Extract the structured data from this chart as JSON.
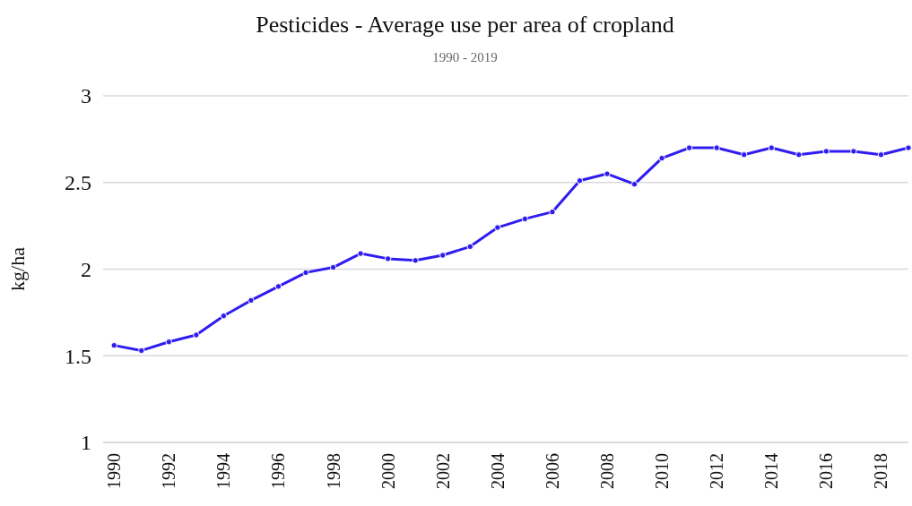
{
  "chart_data": {
    "type": "line",
    "title": "Pesticides - Average use per area of cropland",
    "subtitle": "1990 - 2019",
    "ylabel": "kg/ha",
    "x": [
      1990,
      1991,
      1992,
      1993,
      1994,
      1995,
      1996,
      1997,
      1998,
      1999,
      2000,
      2001,
      2002,
      2003,
      2004,
      2005,
      2006,
      2007,
      2008,
      2009,
      2010,
      2011,
      2012,
      2013,
      2014,
      2015,
      2016,
      2017,
      2018,
      2019
    ],
    "series": [
      {
        "color": "#2f1cf0",
        "values": [
          1.56,
          1.53,
          1.58,
          1.62,
          1.73,
          1.82,
          1.9,
          1.98,
          2.01,
          2.09,
          2.06,
          2.05,
          2.08,
          2.13,
          2.24,
          2.29,
          2.33,
          2.51,
          2.55,
          2.49,
          2.64,
          2.7,
          2.7,
          2.66,
          2.7,
          2.66,
          2.68,
          2.68,
          2.66,
          2.7
        ]
      }
    ],
    "xlim": [
      1989.6,
      2019
    ],
    "xticks": [
      1990,
      1992,
      1994,
      1996,
      1998,
      2000,
      2002,
      2004,
      2006,
      2008,
      2010,
      2012,
      2014,
      2016,
      2018
    ],
    "ylim": [
      1,
      3
    ],
    "yticks": [
      1,
      1.5,
      2,
      2.5,
      3
    ],
    "grid": "y",
    "marker": "circle",
    "line_style": "solid"
  }
}
